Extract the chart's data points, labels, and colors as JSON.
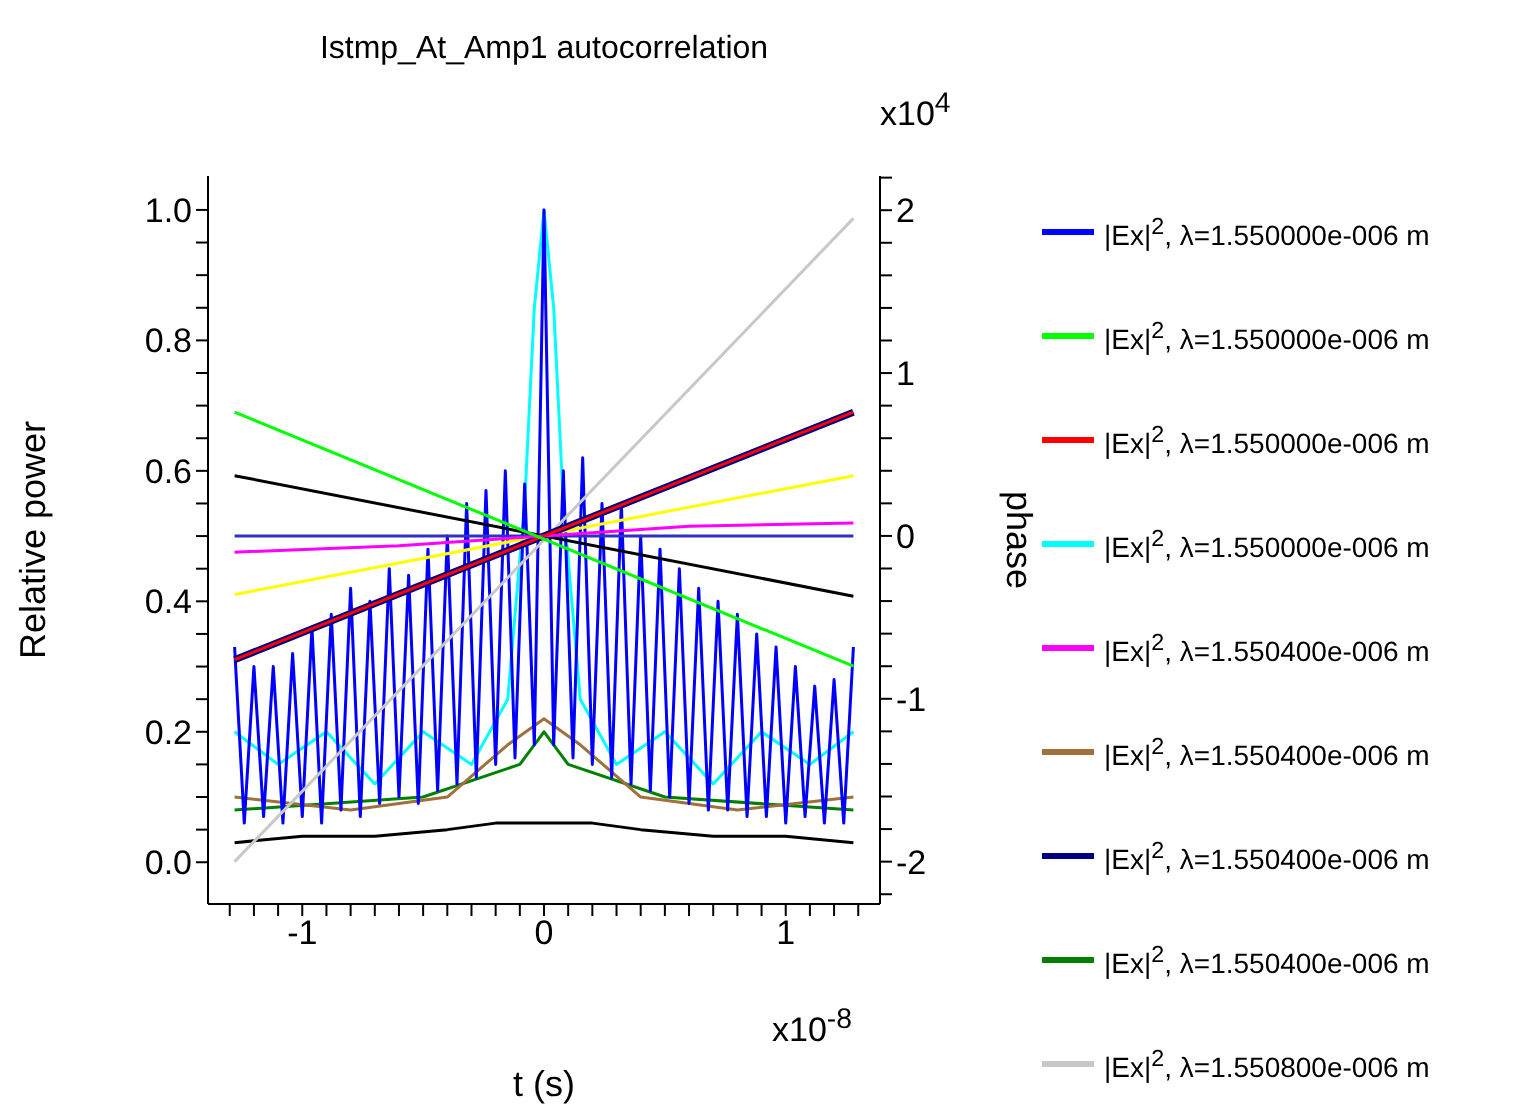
{
  "chart_data": {
    "type": "line",
    "title": "Istmp_At_Amp1 autocorrelation",
    "xlabel": "t (s)",
    "ylabel": "Relative power",
    "y2label": "phase",
    "annotations": [
      "x10$^{4}$",
      "x10$^{-8}$"
    ],
    "xlim": [
      -1.39,
      1.39
    ],
    "ylim": [
      -0.064,
      1.052
    ],
    "y2lim": [
      -2.26,
      2.21
    ],
    "xticks": [
      {
        "value": -1.3,
        "label": null
      },
      {
        "value": -1.2,
        "label": null
      },
      {
        "value": -1.1,
        "label": null
      },
      -1,
      {
        "value": -0.9,
        "label": null
      },
      {
        "value": -0.8,
        "label": null
      },
      {
        "value": -0.7,
        "label": null
      },
      {
        "value": -0.6,
        "label": null
      },
      {
        "value": -0.5,
        "label": null
      },
      {
        "value": -0.4,
        "label": null
      },
      {
        "value": -0.3,
        "label": null
      },
      {
        "value": -0.2,
        "label": null
      },
      {
        "value": -0.1,
        "label": null
      },
      0,
      {
        "value": 0.1,
        "label": null
      },
      {
        "value": 0.2,
        "label": null
      },
      {
        "value": 0.3,
        "label": null
      },
      {
        "value": 0.4,
        "label": null
      },
      {
        "value": 0.5,
        "label": null
      },
      {
        "value": 0.6,
        "label": null
      },
      {
        "value": 0.7,
        "label": null
      },
      {
        "value": 0.8,
        "label": null
      },
      {
        "value": 0.9,
        "label": null
      },
      1,
      {
        "value": 1.1,
        "label": null
      },
      {
        "value": 1.2,
        "label": null
      },
      {
        "value": 1.3,
        "label": null
      }
    ],
    "yticks": [
      {
        "value": 0,
        "label": "0.0"
      },
      {
        "value": 0.05,
        "label": null
      },
      {
        "value": 0.1,
        "label": null
      },
      {
        "value": 0.15,
        "label": null
      },
      {
        "value": 0.2,
        "label": "0.2"
      },
      {
        "value": 0.25,
        "label": null
      },
      {
        "value": 0.3,
        "label": null
      },
      {
        "value": 0.35,
        "label": null
      },
      {
        "value": 0.4,
        "label": "0.4"
      },
      {
        "value": 0.45,
        "label": null
      },
      {
        "value": 0.5,
        "label": null
      },
      {
        "value": 0.55,
        "label": null
      },
      {
        "value": 0.6,
        "label": "0.6"
      },
      {
        "value": 0.65,
        "label": null
      },
      {
        "value": 0.7,
        "label": null
      },
      {
        "value": 0.75,
        "label": null
      },
      {
        "value": 0.8,
        "label": "0.8"
      },
      {
        "value": 0.85,
        "label": null
      },
      {
        "value": 0.9,
        "label": null
      },
      {
        "value": 0.95,
        "label": null
      },
      {
        "value": 1,
        "label": "1.0"
      }
    ],
    "y2ticks": [
      {
        "value": -2.2,
        "label": null
      },
      -2,
      {
        "value": -1.8,
        "label": null
      },
      {
        "value": -1.6,
        "label": null
      },
      {
        "value": -1.4,
        "label": null
      },
      {
        "value": -1.2,
        "label": null
      },
      -1,
      {
        "value": -0.8,
        "label": null
      },
      {
        "value": -0.6,
        "label": null
      },
      {
        "value": -0.4,
        "label": null
      },
      {
        "value": -0.2,
        "label": null
      },
      0,
      {
        "value": 0.2,
        "label": null
      },
      {
        "value": 0.4,
        "label": null
      },
      {
        "value": 0.6,
        "label": null
      },
      {
        "value": 0.8,
        "label": null
      },
      1,
      {
        "value": 1.2,
        "label": null
      },
      {
        "value": 1.4,
        "label": null
      },
      {
        "value": 1.6,
        "label": null
      },
      {
        "value": 1.8,
        "label": null
      },
      2,
      {
        "value": 2.2,
        "label": null
      }
    ],
    "legend": "right",
    "series": [
      {
        "name": "|Ex|$^{2}$, λ=1.550000e-006 m",
        "color": "#0000ff",
        "x": [
          -1.28,
          -1.24,
          -1.2,
          -1.16,
          -1.12,
          -1.08,
          -1.04,
          -1.0,
          -0.96,
          -0.92,
          -0.88,
          -0.84,
          -0.8,
          -0.76,
          -0.72,
          -0.68,
          -0.64,
          -0.6,
          -0.56,
          -0.52,
          -0.48,
          -0.44,
          -0.4,
          -0.36,
          -0.32,
          -0.28,
          -0.24,
          -0.2,
          -0.16,
          -0.12,
          -0.08,
          -0.04,
          0,
          0.04,
          0.08,
          0.12,
          0.16,
          0.2,
          0.24,
          0.28,
          0.32,
          0.36,
          0.4,
          0.44,
          0.48,
          0.52,
          0.56,
          0.6,
          0.64,
          0.68,
          0.72,
          0.76,
          0.8,
          0.84,
          0.88,
          0.92,
          0.96,
          1.0,
          1.04,
          1.08,
          1.12,
          1.16,
          1.2,
          1.24,
          1.28
        ],
        "values": [
          0.33,
          0.06,
          0.3,
          0.07,
          0.3,
          0.06,
          0.32,
          0.07,
          0.36,
          0.06,
          0.38,
          0.08,
          0.42,
          0.07,
          0.4,
          0.09,
          0.45,
          0.1,
          0.44,
          0.09,
          0.48,
          0.11,
          0.5,
          0.12,
          0.55,
          0.13,
          0.57,
          0.15,
          0.6,
          0.16,
          0.58,
          0.18,
          1.0,
          0.18,
          0.6,
          0.16,
          0.62,
          0.15,
          0.55,
          0.13,
          0.55,
          0.12,
          0.5,
          0.11,
          0.48,
          0.1,
          0.45,
          0.09,
          0.42,
          0.08,
          0.4,
          0.08,
          0.38,
          0.07,
          0.35,
          0.07,
          0.33,
          0.06,
          0.3,
          0.07,
          0.27,
          0.06,
          0.28,
          0.06,
          0.33
        ]
      },
      {
        "name": "|Ex|$^{2}$, λ=1.550000e-006 m",
        "color": "#00ff00",
        "axis": "y2",
        "x": [
          -1.28,
          1.28
        ],
        "values": [
          0.76,
          -0.8
        ]
      },
      {
        "name": "|Ex|$^{2}$, λ=1.550000e-006 m",
        "color": "#ff0000",
        "axis": "y2",
        "x": [
          -1.28,
          1.28
        ],
        "values": [
          -0.76,
          0.76
        ]
      },
      {
        "name": "|Ex|$^{2}$, λ=1.550000e-006 m",
        "color": "#00ffff",
        "x": [
          -1.28,
          -1.1,
          -0.9,
          -0.7,
          -0.5,
          -0.3,
          -0.15,
          -0.08,
          -0.04,
          0,
          0.04,
          0.08,
          0.15,
          0.3,
          0.5,
          0.7,
          0.9,
          1.1,
          1.28
        ],
        "values": [
          0.2,
          0.15,
          0.2,
          0.12,
          0.2,
          0.15,
          0.25,
          0.55,
          0.85,
          1.0,
          0.85,
          0.55,
          0.25,
          0.15,
          0.2,
          0.12,
          0.2,
          0.15,
          0.2
        ]
      },
      {
        "name": "|Ex|$^{2}$, λ=1.550400e-006 m",
        "color": "#ff00ff",
        "axis": "y2",
        "x": [
          -1.28,
          -0.6,
          0,
          0.6,
          1.28
        ],
        "values": [
          -0.1,
          -0.06,
          0,
          0.06,
          0.08
        ]
      },
      {
        "name": "|Ex|$^{2}$, λ=1.550400e-006 m",
        "color": "#a0703c",
        "x": [
          -1.28,
          -0.8,
          -0.4,
          -0.15,
          0,
          0.15,
          0.4,
          0.8,
          1.28
        ],
        "values": [
          0.1,
          0.08,
          0.1,
          0.18,
          0.22,
          0.18,
          0.1,
          0.08,
          0.1
        ]
      },
      {
        "name": "|Ex|$^{2}$, λ=1.550400e-006 m",
        "color": "#000080",
        "axis": "y2",
        "x": [
          -1.28,
          1.28
        ],
        "values": [
          -0.76,
          0.76
        ]
      },
      {
        "name": "|Ex|$^{2}$, λ=1.550400e-006 m",
        "color": "#008000",
        "x": [
          -1.28,
          -0.5,
          -0.1,
          0,
          0.1,
          0.5,
          1.28
        ],
        "values": [
          0.08,
          0.1,
          0.15,
          0.2,
          0.15,
          0.1,
          0.08
        ]
      },
      {
        "name": "|Ex|$^{2}$, λ=1.550800e-006 m",
        "color": "#c8c8c8",
        "axis": "y2",
        "x": [
          -1.28,
          1.28
        ],
        "values": [
          -2.0,
          1.95
        ]
      },
      {
        "color": "#000000",
        "x": [
          -1.28,
          -1.0,
          -0.7,
          -0.4,
          -0.2,
          0,
          0.2,
          0.4,
          0.7,
          1.0,
          1.28
        ],
        "values": [
          0.03,
          0.04,
          0.04,
          0.05,
          0.06,
          0.06,
          0.06,
          0.05,
          0.04,
          0.04,
          0.03
        ]
      },
      {
        "color": "#000000",
        "axis": "y2",
        "x": [
          -1.28,
          1.28
        ],
        "values": [
          0.37,
          -0.37
        ]
      },
      {
        "color": "#ffff00",
        "axis": "y2",
        "x": [
          -1.28,
          1.28
        ],
        "values": [
          -0.36,
          0.37
        ]
      },
      {
        "color": "#3030c0",
        "axis": "y2",
        "x": [
          -1.28,
          1.28
        ],
        "values": [
          0,
          0
        ]
      }
    ]
  }
}
